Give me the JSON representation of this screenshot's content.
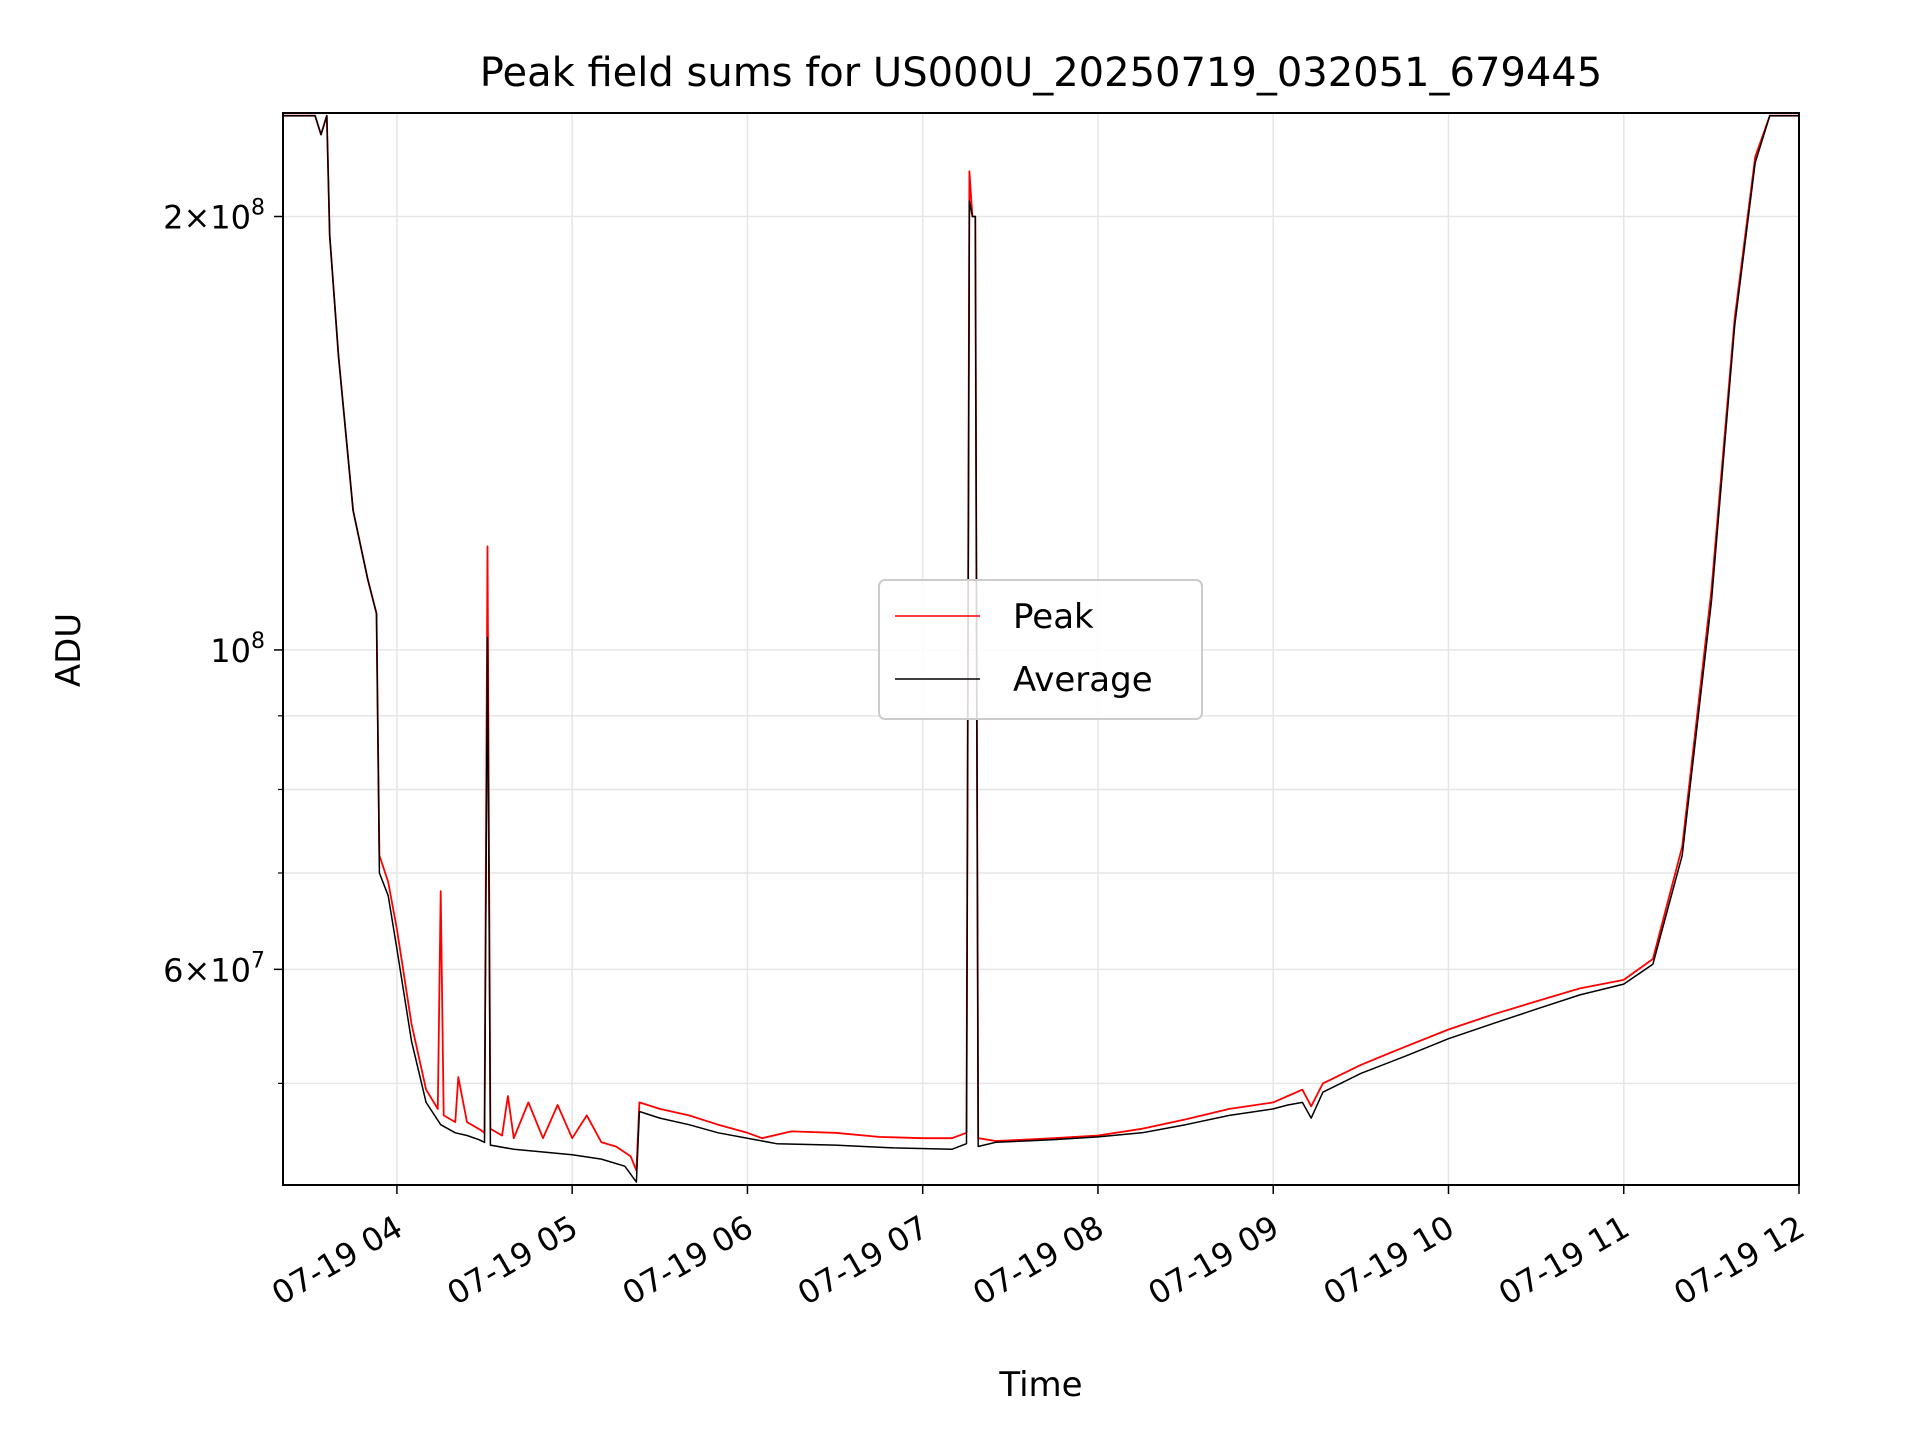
{
  "chart_data": {
    "type": "line",
    "title": "Peak field sums for US000U_20250719_032051_679445",
    "xlabel": "Time",
    "ylabel": "ADU",
    "yscale": "log",
    "xlim": [
      "2025-07-19T03:21",
      "2025-07-19T12:00"
    ],
    "ylim": [
      42500000,
      236000000
    ],
    "grid": true,
    "legend_position": "center",
    "x_tick_labels": [
      "07-19 04",
      "07-19 05",
      "07-19 06",
      "07-19 07",
      "07-19 08",
      "07-19 09",
      "07-19 10",
      "07-19 11",
      "07-19 12"
    ],
    "x_tick_values": [
      "2025-07-19T04:00",
      "2025-07-19T05:00",
      "2025-07-19T06:00",
      "2025-07-19T07:00",
      "2025-07-19T08:00",
      "2025-07-19T09:00",
      "2025-07-19T10:00",
      "2025-07-19T11:00",
      "2025-07-19T12:00"
    ],
    "y_major_ticks": [
      {
        "value": 200000000,
        "mantissa": "2",
        "exponent": "8"
      },
      {
        "value": 100000000,
        "mantissa": "",
        "exponent": "8"
      },
      {
        "value": 60000000,
        "mantissa": "6",
        "exponent": "7"
      }
    ],
    "y_minor_ticks": [
      50000000,
      70000000,
      80000000,
      90000000
    ],
    "series": [
      {
        "name": "Peak",
        "color": "#ff0000",
        "points": [
          [
            "2025-07-19T03:21",
            235000000
          ],
          [
            "2025-07-19T03:32",
            235000000
          ],
          [
            "2025-07-19T03:34",
            228000000
          ],
          [
            "2025-07-19T03:36",
            235000000
          ],
          [
            "2025-07-19T03:37",
            194000000
          ],
          [
            "2025-07-19T03:40",
            160000000
          ],
          [
            "2025-07-19T03:45",
            125000000
          ],
          [
            "2025-07-19T03:50",
            112000000
          ],
          [
            "2025-07-19T03:53",
            106000000
          ],
          [
            "2025-07-19T03:54",
            72000000
          ],
          [
            "2025-07-19T03:57",
            69000000
          ],
          [
            "2025-07-19T04:00",
            64000000
          ],
          [
            "2025-07-19T04:05",
            55000000
          ],
          [
            "2025-07-19T04:10",
            49500000
          ],
          [
            "2025-07-19T04:14",
            48000000
          ],
          [
            "2025-07-19T04:15",
            68000000
          ],
          [
            "2025-07-19T04:16",
            47500000
          ],
          [
            "2025-07-19T04:20",
            47000000
          ],
          [
            "2025-07-19T04:21",
            50500000
          ],
          [
            "2025-07-19T04:24",
            47000000
          ],
          [
            "2025-07-19T04:28",
            46500000
          ],
          [
            "2025-07-19T04:30",
            46200000
          ],
          [
            "2025-07-19T04:31",
            118000000
          ],
          [
            "2025-07-19T04:32",
            46500000
          ],
          [
            "2025-07-19T04:36",
            46000000
          ],
          [
            "2025-07-19T04:38",
            49000000
          ],
          [
            "2025-07-19T04:40",
            45800000
          ],
          [
            "2025-07-19T04:45",
            48500000
          ],
          [
            "2025-07-19T04:50",
            45800000
          ],
          [
            "2025-07-19T04:55",
            48300000
          ],
          [
            "2025-07-19T05:00",
            45800000
          ],
          [
            "2025-07-19T05:05",
            47500000
          ],
          [
            "2025-07-19T05:10",
            45500000
          ],
          [
            "2025-07-19T05:15",
            45200000
          ],
          [
            "2025-07-19T05:20",
            44500000
          ],
          [
            "2025-07-19T05:22",
            43500000
          ],
          [
            "2025-07-19T05:23",
            48500000
          ],
          [
            "2025-07-19T05:30",
            48000000
          ],
          [
            "2025-07-19T05:40",
            47500000
          ],
          [
            "2025-07-19T05:50",
            46800000
          ],
          [
            "2025-07-19T06:00",
            46200000
          ],
          [
            "2025-07-19T06:05",
            45800000
          ],
          [
            "2025-07-19T06:15",
            46300000
          ],
          [
            "2025-07-19T06:30",
            46200000
          ],
          [
            "2025-07-19T06:45",
            45900000
          ],
          [
            "2025-07-19T07:00",
            45800000
          ],
          [
            "2025-07-19T07:10",
            45800000
          ],
          [
            "2025-07-19T07:15",
            46200000
          ],
          [
            "2025-07-19T07:16",
            215000000
          ],
          [
            "2025-07-19T07:17",
            200000000
          ],
          [
            "2025-07-19T07:18",
            200000000
          ],
          [
            "2025-07-19T07:19",
            45800000
          ],
          [
            "2025-07-19T07:25",
            45600000
          ],
          [
            "2025-07-19T07:35",
            45700000
          ],
          [
            "2025-07-19T07:45",
            45800000
          ],
          [
            "2025-07-19T08:00",
            46000000
          ],
          [
            "2025-07-19T08:15",
            46500000
          ],
          [
            "2025-07-19T08:30",
            47200000
          ],
          [
            "2025-07-19T08:45",
            48000000
          ],
          [
            "2025-07-19T09:00",
            48500000
          ],
          [
            "2025-07-19T09:05",
            49000000
          ],
          [
            "2025-07-19T09:10",
            49500000
          ],
          [
            "2025-07-19T09:13",
            48200000
          ],
          [
            "2025-07-19T09:17",
            50000000
          ],
          [
            "2025-07-19T09:30",
            51500000
          ],
          [
            "2025-07-19T09:45",
            53000000
          ],
          [
            "2025-07-19T10:00",
            54500000
          ],
          [
            "2025-07-19T10:15",
            55800000
          ],
          [
            "2025-07-19T10:30",
            57000000
          ],
          [
            "2025-07-19T10:45",
            58200000
          ],
          [
            "2025-07-19T11:00",
            59000000
          ],
          [
            "2025-07-19T11:10",
            61000000
          ],
          [
            "2025-07-19T11:20",
            73000000
          ],
          [
            "2025-07-19T11:30",
            110000000
          ],
          [
            "2025-07-19T11:38",
            170000000
          ],
          [
            "2025-07-19T11:45",
            220000000
          ],
          [
            "2025-07-19T11:50",
            235000000
          ],
          [
            "2025-07-19T12:00",
            235000000
          ]
        ]
      },
      {
        "name": "Average",
        "color": "#000000",
        "points": [
          [
            "2025-07-19T03:21",
            235000000
          ],
          [
            "2025-07-19T03:32",
            235000000
          ],
          [
            "2025-07-19T03:34",
            228000000
          ],
          [
            "2025-07-19T03:36",
            235000000
          ],
          [
            "2025-07-19T03:37",
            194000000
          ],
          [
            "2025-07-19T03:40",
            160000000
          ],
          [
            "2025-07-19T03:45",
            125000000
          ],
          [
            "2025-07-19T03:50",
            112000000
          ],
          [
            "2025-07-19T03:53",
            106000000
          ],
          [
            "2025-07-19T03:54",
            70000000
          ],
          [
            "2025-07-19T03:57",
            67500000
          ],
          [
            "2025-07-19T04:00",
            62000000
          ],
          [
            "2025-07-19T04:05",
            53500000
          ],
          [
            "2025-07-19T04:10",
            48500000
          ],
          [
            "2025-07-19T04:15",
            46800000
          ],
          [
            "2025-07-19T04:20",
            46200000
          ],
          [
            "2025-07-19T04:24",
            46000000
          ],
          [
            "2025-07-19T04:28",
            45700000
          ],
          [
            "2025-07-19T04:30",
            45500000
          ],
          [
            "2025-07-19T04:31",
            102000000
          ],
          [
            "2025-07-19T04:32",
            45300000
          ],
          [
            "2025-07-19T04:40",
            45000000
          ],
          [
            "2025-07-19T04:50",
            44800000
          ],
          [
            "2025-07-19T05:00",
            44600000
          ],
          [
            "2025-07-19T05:10",
            44300000
          ],
          [
            "2025-07-19T05:18",
            43800000
          ],
          [
            "2025-07-19T05:22",
            42700000
          ],
          [
            "2025-07-19T05:23",
            47800000
          ],
          [
            "2025-07-19T05:30",
            47300000
          ],
          [
            "2025-07-19T05:40",
            46800000
          ],
          [
            "2025-07-19T05:50",
            46200000
          ],
          [
            "2025-07-19T06:00",
            45800000
          ],
          [
            "2025-07-19T06:10",
            45400000
          ],
          [
            "2025-07-19T06:30",
            45300000
          ],
          [
            "2025-07-19T06:50",
            45100000
          ],
          [
            "2025-07-19T07:10",
            45000000
          ],
          [
            "2025-07-19T07:15",
            45400000
          ],
          [
            "2025-07-19T07:16",
            205000000
          ],
          [
            "2025-07-19T07:17",
            200000000
          ],
          [
            "2025-07-19T07:18",
            200000000
          ],
          [
            "2025-07-19T07:19",
            45200000
          ],
          [
            "2025-07-19T07:25",
            45500000
          ],
          [
            "2025-07-19T07:35",
            45600000
          ],
          [
            "2025-07-19T07:45",
            45700000
          ],
          [
            "2025-07-19T08:00",
            45900000
          ],
          [
            "2025-07-19T08:15",
            46200000
          ],
          [
            "2025-07-19T08:30",
            46800000
          ],
          [
            "2025-07-19T08:45",
            47500000
          ],
          [
            "2025-07-19T09:00",
            48000000
          ],
          [
            "2025-07-19T09:05",
            48300000
          ],
          [
            "2025-07-19T09:10",
            48500000
          ],
          [
            "2025-07-19T09:13",
            47300000
          ],
          [
            "2025-07-19T09:17",
            49300000
          ],
          [
            "2025-07-19T09:30",
            50800000
          ],
          [
            "2025-07-19T09:45",
            52200000
          ],
          [
            "2025-07-19T10:00",
            53700000
          ],
          [
            "2025-07-19T10:15",
            55000000
          ],
          [
            "2025-07-19T10:30",
            56300000
          ],
          [
            "2025-07-19T10:45",
            57600000
          ],
          [
            "2025-07-19T11:00",
            58600000
          ],
          [
            "2025-07-19T11:10",
            60500000
          ],
          [
            "2025-07-19T11:20",
            72000000
          ],
          [
            "2025-07-19T11:30",
            108000000
          ],
          [
            "2025-07-19T11:38",
            168000000
          ],
          [
            "2025-07-19T11:45",
            218000000
          ],
          [
            "2025-07-19T11:50",
            235000000
          ],
          [
            "2025-07-19T12:00",
            235000000
          ]
        ]
      }
    ]
  }
}
